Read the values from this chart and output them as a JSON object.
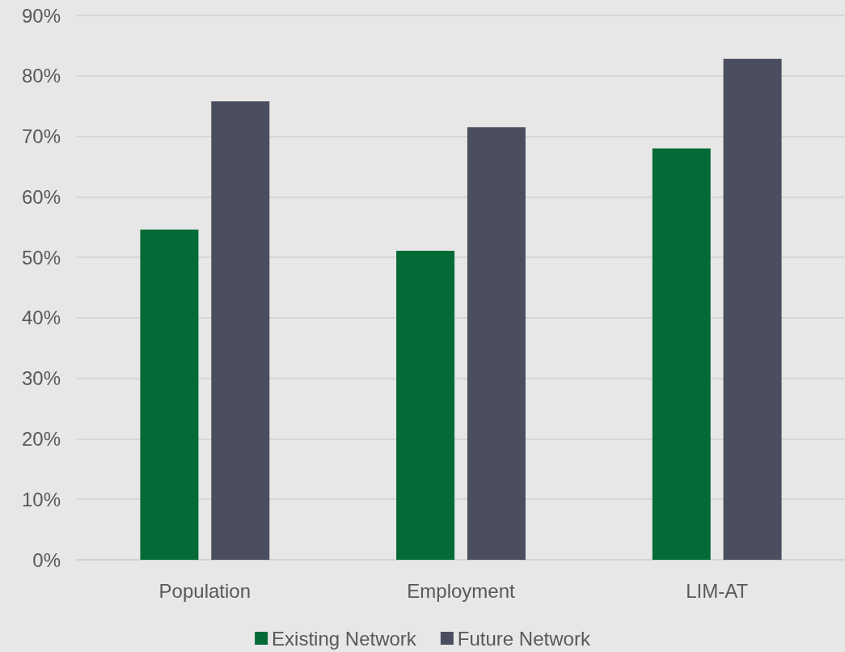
{
  "chart_data": {
    "type": "bar",
    "categories": [
      "Population",
      "Employment",
      "LIM-AT"
    ],
    "series": [
      {
        "name": "Existing Network",
        "color": "#046b37",
        "values": [
          54.6,
          51.1,
          68.0
        ]
      },
      {
        "name": "Future Network",
        "color": "#4b4e5e",
        "values": [
          75.8,
          71.5,
          82.8
        ]
      }
    ],
    "ylim": [
      0,
      90
    ],
    "yticks": [
      {
        "value": 0,
        "label": "0%"
      },
      {
        "value": 10,
        "label": "10%"
      },
      {
        "value": 20,
        "label": "20%"
      },
      {
        "value": 30,
        "label": "30%"
      },
      {
        "value": 40,
        "label": "40%"
      },
      {
        "value": 50,
        "label": "50%"
      },
      {
        "value": 60,
        "label": "60%"
      },
      {
        "value": 70,
        "label": "70%"
      },
      {
        "value": 80,
        "label": "80%"
      },
      {
        "value": 90,
        "label": "90%"
      }
    ],
    "grid": "y",
    "legend": "bottom"
  }
}
